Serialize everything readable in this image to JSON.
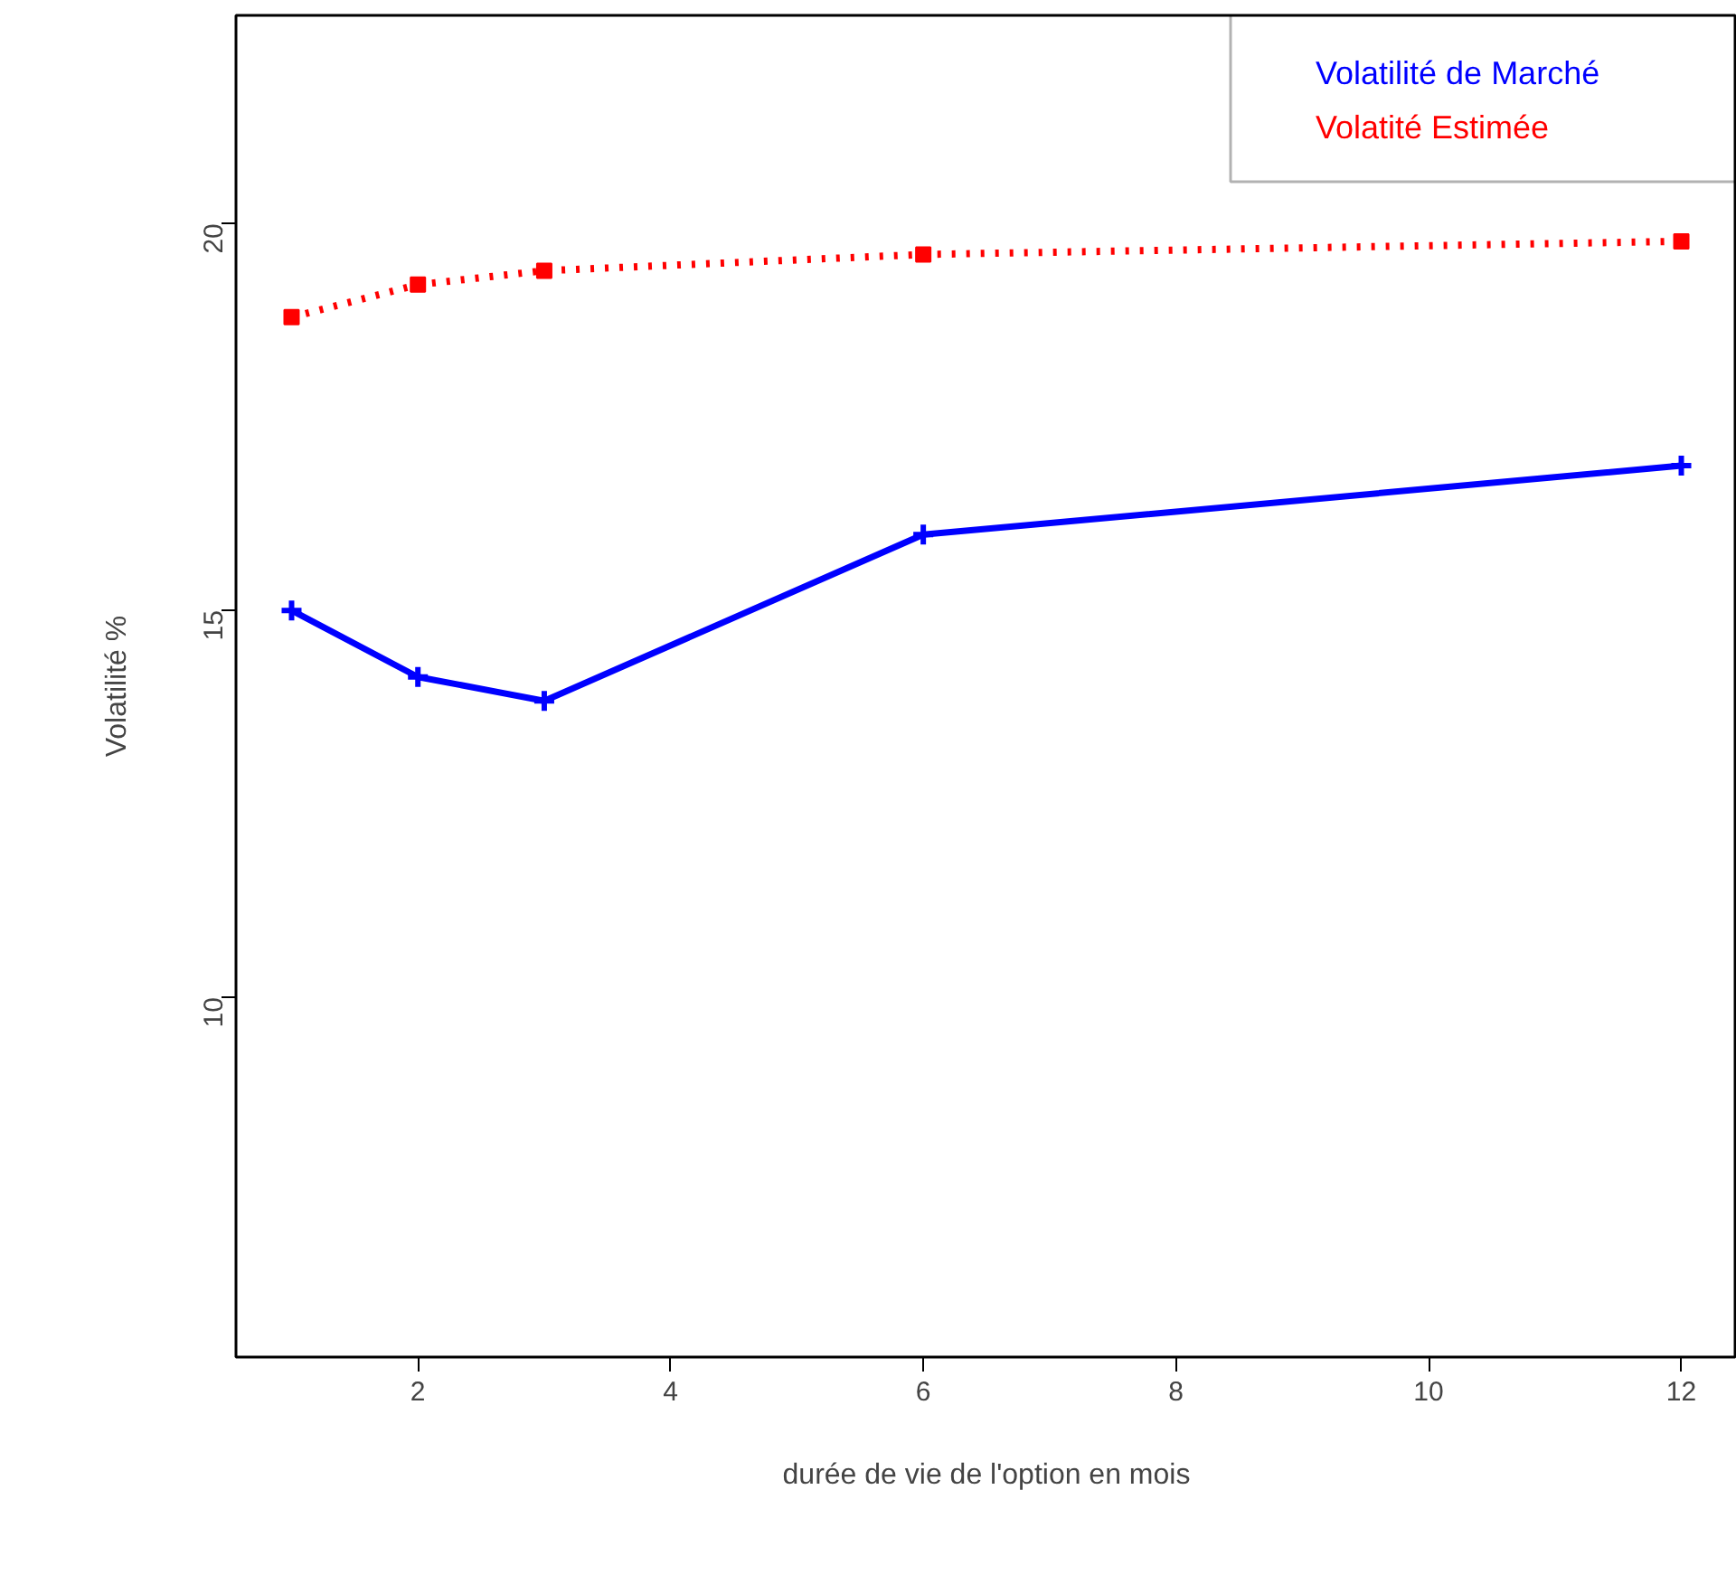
{
  "chart_data": {
    "type": "line",
    "xlabel": "durée de vie de l'option en mois",
    "ylabel": "Volatilité %",
    "x": [
      1,
      2,
      3,
      6,
      12
    ],
    "series": [
      {
        "name": "Volatilité de Marché",
        "color": "#0000ff",
        "values": [
          15.0,
          14.14,
          13.83,
          15.98,
          16.87
        ],
        "marker": "cross",
        "line_style": "solid"
      },
      {
        "name": "Volatité Estimée",
        "color": "#ff0000",
        "values": [
          18.79,
          19.21,
          19.39,
          19.6,
          19.77
        ],
        "marker": "square",
        "line_style": "dotted"
      }
    ],
    "xlim": [
      0.56,
      12.44
    ],
    "ylim": [
      5.35,
      22.69
    ],
    "xticks": [
      2,
      4,
      6,
      8,
      10,
      12
    ],
    "yticks": [
      10,
      15,
      20
    ],
    "grid": false,
    "legend": "top right"
  }
}
